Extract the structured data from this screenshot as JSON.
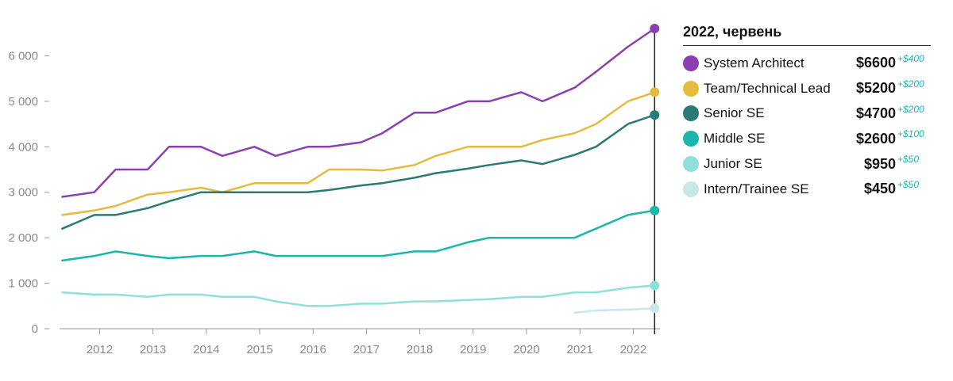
{
  "chart_data": {
    "type": "line",
    "title": "",
    "xlabel": "",
    "ylabel": "",
    "ylim": [
      0,
      6600
    ],
    "yticks": [
      0,
      1000,
      2000,
      3000,
      4000,
      5000,
      6000
    ],
    "ytick_labels": [
      "0",
      "1 000",
      "2 000",
      "3 000",
      "4 000",
      "5 000",
      "6 000"
    ],
    "xlim": [
      2011.25,
      2022.5
    ],
    "xticks": [
      2012,
      2013,
      2014,
      2015,
      2016,
      2017,
      2018,
      2019,
      2020,
      2021,
      2022
    ],
    "xtick_labels": [
      "2012",
      "2013",
      "2014",
      "2015",
      "2016",
      "2017",
      "2018",
      "2019",
      "2020",
      "2021",
      "2022"
    ],
    "grid": false,
    "legend_position": "right",
    "series": [
      {
        "name": "System Architect",
        "color": "#8b3fb3",
        "x": [
          2011.3,
          2011.9,
          2012.3,
          2012.9,
          2013.3,
          2013.9,
          2014.3,
          2014.9,
          2015.3,
          2015.9,
          2016.3,
          2016.9,
          2017.3,
          2017.9,
          2018.3,
          2018.9,
          2019.3,
          2019.9,
          2020.3,
          2020.9,
          2021.3,
          2021.9,
          2022.4
        ],
        "y": [
          2900,
          3000,
          3500,
          3500,
          4000,
          4000,
          3800,
          4000,
          3800,
          4000,
          4000,
          4100,
          4300,
          4750,
          4750,
          5000,
          5000,
          5200,
          5000,
          5300,
          5650,
          6200,
          6600
        ]
      },
      {
        "name": "Team/Technical Lead",
        "color": "#e5bb3e",
        "x": [
          2011.3,
          2011.9,
          2012.3,
          2012.9,
          2013.3,
          2013.9,
          2014.3,
          2014.9,
          2015.3,
          2015.9,
          2016.3,
          2016.9,
          2017.3,
          2017.9,
          2018.3,
          2018.9,
          2019.3,
          2019.9,
          2020.3,
          2020.9,
          2021.3,
          2021.9,
          2022.4
        ],
        "y": [
          2500,
          2600,
          2700,
          2950,
          3000,
          3100,
          3000,
          3200,
          3200,
          3200,
          3500,
          3500,
          3480,
          3600,
          3800,
          4000,
          4000,
          4000,
          4150,
          4300,
          4500,
          5000,
          5200
        ]
      },
      {
        "name": "Senior SE",
        "color": "#297b73",
        "x": [
          2011.3,
          2011.9,
          2012.3,
          2012.9,
          2013.3,
          2013.9,
          2014.3,
          2014.9,
          2015.3,
          2015.9,
          2016.3,
          2016.9,
          2017.3,
          2017.9,
          2018.3,
          2018.9,
          2019.3,
          2019.9,
          2020.3,
          2020.9,
          2021.3,
          2021.9,
          2022.4
        ],
        "y": [
          2200,
          2500,
          2500,
          2650,
          2800,
          3000,
          3000,
          3000,
          3000,
          3000,
          3050,
          3150,
          3200,
          3320,
          3420,
          3520,
          3600,
          3700,
          3620,
          3820,
          4000,
          4500,
          4700
        ]
      },
      {
        "name": "Middle SE",
        "color": "#1ab5ab",
        "x": [
          2011.3,
          2011.9,
          2012.3,
          2012.9,
          2013.3,
          2013.9,
          2014.3,
          2014.9,
          2015.3,
          2015.9,
          2016.3,
          2016.9,
          2017.3,
          2017.9,
          2018.3,
          2018.9,
          2019.3,
          2019.9,
          2020.3,
          2020.9,
          2021.3,
          2021.9,
          2022.4
        ],
        "y": [
          1500,
          1600,
          1700,
          1600,
          1550,
          1600,
          1600,
          1700,
          1600,
          1600,
          1600,
          1600,
          1600,
          1700,
          1700,
          1900,
          2000,
          2000,
          2000,
          2000,
          2200,
          2500,
          2600
        ]
      },
      {
        "name": "Junior SE",
        "color": "#8fe0d9",
        "x": [
          2011.3,
          2011.9,
          2012.3,
          2012.9,
          2013.3,
          2013.9,
          2014.3,
          2014.9,
          2015.3,
          2015.9,
          2016.3,
          2016.9,
          2017.3,
          2017.9,
          2018.3,
          2018.9,
          2019.3,
          2019.9,
          2020.3,
          2020.9,
          2021.3,
          2021.9,
          2022.4
        ],
        "y": [
          800,
          750,
          750,
          700,
          750,
          750,
          700,
          700,
          600,
          500,
          500,
          550,
          550,
          600,
          600,
          630,
          650,
          700,
          700,
          800,
          800,
          900,
          950
        ]
      },
      {
        "name": "Intern/Trainee SE",
        "color": "#c6e8e6",
        "x": [
          2020.9,
          2021.3,
          2021.9,
          2022.4
        ],
        "y": [
          350,
          400,
          420,
          450
        ]
      }
    ]
  },
  "legend": {
    "title": "2022, червень",
    "items": [
      {
        "name": "System Architect",
        "value": "$6600",
        "delta": "+$400",
        "color": "#8b3fb3"
      },
      {
        "name": "Team/Technical Lead",
        "value": "$5200",
        "delta": "+$200",
        "color": "#e5bb3e"
      },
      {
        "name": "Senior SE",
        "value": "$4700",
        "delta": "+$200",
        "color": "#297b73"
      },
      {
        "name": "Middle SE",
        "value": "$2600",
        "delta": "+$100",
        "color": "#1ab5ab"
      },
      {
        "name": "Junior SE",
        "value": "$950",
        "delta": "+$50",
        "color": "#8fe0d9"
      },
      {
        "name": "Intern/Trainee SE",
        "value": "$450",
        "delta": "+$50",
        "color": "#c6e8e6"
      }
    ],
    "delta_color": "#1ab5ab"
  }
}
